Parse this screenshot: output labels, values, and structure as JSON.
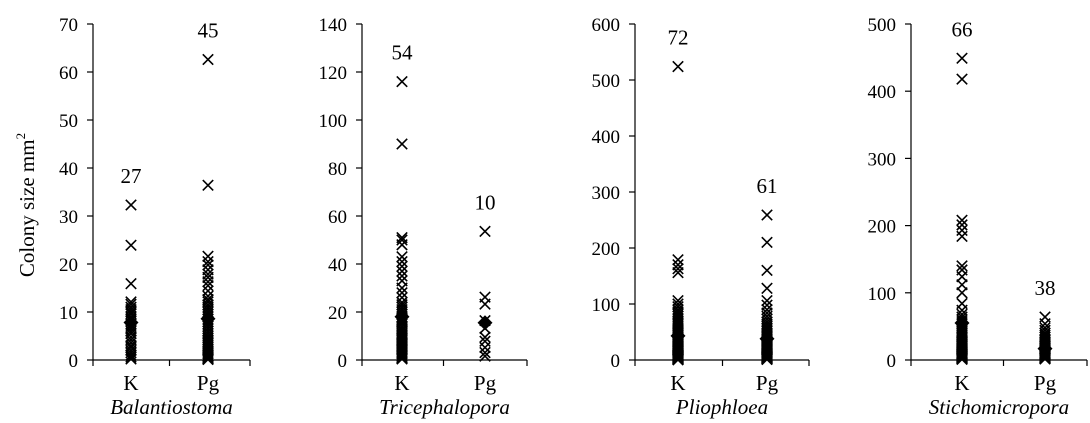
{
  "y_axis_label": "Colony size mm",
  "y_axis_label_superscript": "2",
  "colors": {
    "marker": "#000000",
    "axis": "#000000",
    "background": "#ffffff"
  },
  "chart_data": [
    {
      "type": "scatter",
      "genus": "Balantiostoma",
      "categories": [
        "K",
        "Pg"
      ],
      "ylim": [
        0,
        70
      ],
      "yticks": [
        0,
        10,
        20,
        30,
        40,
        50,
        60,
        70
      ],
      "series": [
        {
          "category": "K",
          "count_label": "27",
          "mean": 7.8,
          "values": [
            32.3,
            23.9,
            15.9,
            12.1,
            11.6,
            11.0,
            10.5,
            10.0,
            9.6,
            9.0,
            8.6,
            8.2,
            7.5,
            7.0,
            6.5,
            6.0,
            5.5,
            4.8,
            4.2,
            3.6,
            3.0,
            2.6,
            2.0,
            1.5,
            1.0,
            0.6,
            0.2
          ]
        },
        {
          "category": "Pg",
          "count_label": "45",
          "mean": 8.6,
          "values": [
            62.6,
            36.4,
            21.6,
            20.5,
            19.8,
            18.8,
            17.9,
            17.2,
            16.3,
            15.5,
            14.4,
            13.3,
            12.6,
            12.1,
            11.5,
            11.0,
            10.5,
            10.0,
            9.5,
            9.0,
            8.5,
            8.0,
            7.5,
            7.0,
            6.5,
            6.0,
            5.5,
            5.0,
            4.6,
            4.2,
            3.8,
            3.4,
            3.0,
            2.6,
            2.2,
            1.9,
            1.6,
            1.3,
            1.0,
            0.8,
            0.6,
            0.4,
            0.3,
            0.2,
            0.1
          ]
        }
      ]
    },
    {
      "type": "scatter",
      "genus": "Tricephalopora",
      "categories": [
        "K",
        "Pg"
      ],
      "ylim": [
        0,
        140
      ],
      "yticks": [
        0,
        20,
        40,
        60,
        80,
        100,
        120,
        140
      ],
      "series": [
        {
          "category": "K",
          "count_label": "54",
          "mean": 18.0,
          "values": [
            116,
            90,
            51,
            50,
            48,
            43,
            41,
            39,
            37,
            35,
            33,
            30,
            28,
            26,
            24,
            23,
            22,
            21,
            20,
            19,
            18,
            17.5,
            17,
            16.5,
            16,
            15.5,
            15,
            14,
            13,
            12.5,
            12,
            11,
            10.5,
            10,
            9.5,
            9,
            8.5,
            8,
            7.5,
            7,
            6.5,
            6,
            5.5,
            5,
            4.5,
            4,
            3.5,
            3,
            2.5,
            2,
            1.5,
            1,
            0.7,
            0.4
          ]
        },
        {
          "category": "Pg",
          "count_label": "10",
          "mean": 15.5,
          "values": [
            53.6,
            26.2,
            23.3,
            16.4,
            13.2,
            9.5,
            7.8,
            5.2,
            3.1,
            1.6
          ]
        }
      ]
    },
    {
      "type": "scatter",
      "genus": "Pliophloea",
      "categories": [
        "K",
        "Pg"
      ],
      "ylim": [
        0,
        600
      ],
      "yticks": [
        0,
        100,
        200,
        300,
        400,
        500,
        600
      ],
      "series": [
        {
          "category": "K",
          "count_label": "72",
          "mean": 43,
          "values": [
            524,
            179,
            170,
            163,
            156,
            106,
            100,
            95,
            90,
            86,
            82,
            78,
            74,
            70,
            67,
            64,
            61,
            58,
            55,
            52,
            50,
            48,
            46,
            44,
            42,
            40,
            38,
            36,
            34,
            33,
            32,
            30,
            29,
            28,
            26,
            25,
            24,
            23,
            22,
            21,
            20,
            19,
            18,
            17,
            16,
            15,
            14,
            13,
            12,
            11,
            10,
            9.5,
            9,
            8.5,
            8,
            7.5,
            7,
            6.5,
            6,
            5.5,
            5,
            4.5,
            4,
            3.5,
            3,
            2.5,
            2,
            1.6,
            1.2,
            0.9,
            0.6,
            0.3
          ]
        },
        {
          "category": "Pg",
          "count_label": "61",
          "mean": 38,
          "values": [
            259,
            210,
            160,
            128,
            106,
            98,
            90,
            84,
            78,
            73,
            68,
            64,
            60,
            57,
            54,
            51,
            48,
            46,
            44,
            42,
            40,
            38,
            36,
            34,
            32,
            30,
            29,
            28,
            27,
            26,
            25,
            24,
            23,
            22,
            21,
            20,
            19,
            18,
            17,
            16,
            15,
            14,
            13,
            12,
            11,
            10,
            9,
            8,
            7,
            6.5,
            6,
            5.5,
            5,
            4.5,
            4,
            3.5,
            3,
            2.5,
            2,
            1.5,
            1
          ]
        }
      ]
    },
    {
      "type": "scatter",
      "genus": "Stichomicropora",
      "categories": [
        "K",
        "Pg"
      ],
      "ylim": [
        0,
        500
      ],
      "yticks": [
        0,
        100,
        200,
        300,
        400,
        500
      ],
      "series": [
        {
          "category": "K",
          "count_label": "66",
          "mean": 55,
          "values": [
            449,
            418,
            208,
            201,
            193,
            184,
            140,
            134,
            124,
            112,
            100,
            84,
            74,
            68,
            64,
            60,
            57,
            54,
            51,
            48,
            46,
            44,
            42,
            40,
            38,
            36,
            34,
            32,
            30,
            28,
            27,
            26,
            25,
            24,
            23,
            22,
            21,
            20,
            19,
            18,
            17,
            16,
            15,
            14,
            13,
            12,
            11,
            10,
            9.5,
            9,
            8.5,
            8,
            7.5,
            7,
            6.5,
            6,
            5.5,
            5,
            4.5,
            4,
            3.5,
            3,
            2.5,
            2,
            1.5,
            1
          ]
        },
        {
          "category": "Pg",
          "count_label": "38",
          "mean": 17,
          "values": [
            64,
            54,
            48,
            44,
            40,
            37,
            34,
            31,
            29,
            27,
            25,
            23,
            22,
            21,
            20,
            19,
            18,
            17,
            16,
            15,
            14,
            13,
            12,
            11,
            10,
            9.5,
            9,
            8.5,
            8,
            7,
            6,
            5,
            4,
            3.5,
            3,
            2.5,
            2,
            1.5
          ]
        }
      ]
    }
  ]
}
